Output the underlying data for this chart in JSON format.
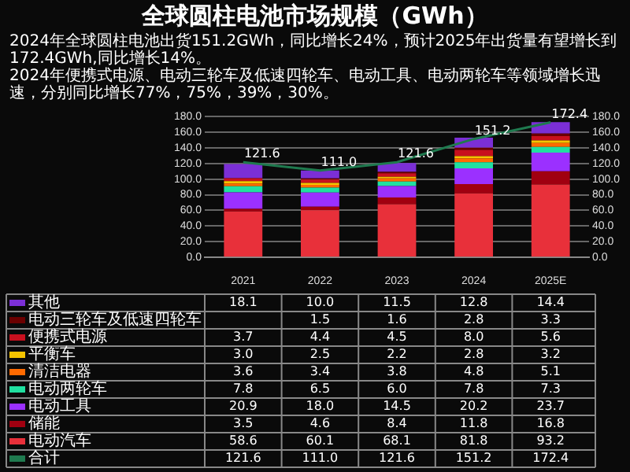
{
  "chart_data": {
    "type": "bar",
    "title": "全球圆柱电池市场规模（GWh）",
    "subtitle": "2024年全球圆柱电池出货151.2GWh，同比增长24%，预计2025年出货量有望增长到172.4GWh,同比增长14%。\n2024年便携式电源、电动三轮车及低速四轮车、电动工具、电动两轮车等领域增长迅速，分别同比增长77%，75%，39%，30%。",
    "categories": [
      "2021",
      "2022",
      "2023",
      "2024",
      "2025E"
    ],
    "stacked": true,
    "series": [
      {
        "name": "电动汽车",
        "color": "#e8303a",
        "values": [
          58.6,
          60.1,
          68.1,
          81.8,
          93.2
        ],
        "value_labels": [
          "58.6",
          "60.1",
          "68.1",
          "81.8",
          "93.2"
        ]
      },
      {
        "name": "储能",
        "color": "#a00010",
        "values": [
          3.5,
          4.6,
          8.4,
          11.8,
          16.8
        ],
        "value_labels": [
          "3.5",
          "4.6",
          "8.4",
          "11.8",
          "16.8"
        ]
      },
      {
        "name": "电动工具",
        "color": "#9b30ff",
        "values": [
          20.9,
          18.0,
          14.5,
          20.2,
          23.7
        ],
        "value_labels": [
          "20.9",
          "18.0",
          "14.5",
          "20.2",
          "23.7"
        ]
      },
      {
        "name": "电动两轮车",
        "color": "#20e0a0",
        "values": [
          7.8,
          6.5,
          6.0,
          7.8,
          7.3
        ],
        "value_labels": [
          "7.8",
          "6.5",
          "6.0",
          "7.8",
          "7.3"
        ]
      },
      {
        "name": "清洁电器",
        "color": "#ff6a00",
        "values": [
          3.6,
          3.4,
          3.8,
          4.8,
          5.1
        ],
        "value_labels": [
          "3.6",
          "3.4",
          "3.8",
          "4.8",
          "5.1"
        ]
      },
      {
        "name": "平衡车",
        "color": "#f5c400",
        "values": [
          3.0,
          2.5,
          2.2,
          2.8,
          3.2
        ],
        "value_labels": [
          "3.0",
          "2.5",
          "2.2",
          "2.8",
          "3.2"
        ]
      },
      {
        "name": "便携式电源",
        "color": "#c8101e",
        "values": [
          3.7,
          4.4,
          4.5,
          8.0,
          5.6
        ],
        "value_labels": [
          "3.7",
          "4.4",
          "4.5",
          "8.0",
          "5.6"
        ]
      },
      {
        "name": "电动三轮车及低速四轮车",
        "color": "#6b0000",
        "values": [
          null,
          1.5,
          1.6,
          2.8,
          3.3
        ],
        "value_labels": [
          null,
          "1.5",
          "1.6",
          "2.8",
          "3.3"
        ]
      },
      {
        "name": "其他",
        "color": "#7b2fd6",
        "values": [
          18.1,
          10.0,
          11.5,
          12.8,
          14.4
        ],
        "value_labels": [
          "18.1",
          "10.0",
          "11.5",
          "12.8",
          "14.4"
        ]
      },
      {
        "name": "合计",
        "type": "line",
        "color": "#1f7a4f",
        "values": [
          121.6,
          111.0,
          121.6,
          151.2,
          172.4
        ],
        "value_labels": [
          "121.6",
          "111.0",
          "121.6",
          "151.2",
          "172.4"
        ]
      }
    ],
    "ylim": [
      0,
      180
    ],
    "yticks": [
      {
        "value": 0,
        "label": "0.0"
      },
      {
        "value": 20,
        "label": "20.0"
      },
      {
        "value": 40,
        "label": "40.0"
      },
      {
        "value": 60,
        "label": "60.0"
      },
      {
        "value": 80,
        "label": "80.0"
      },
      {
        "value": 100,
        "label": "100.0"
      },
      {
        "value": 120,
        "label": "120.0"
      },
      {
        "value": 140,
        "label": "140.0"
      },
      {
        "value": 160,
        "label": "160.0"
      },
      {
        "value": 180,
        "label": "180.0"
      }
    ],
    "y2lim": [
      0,
      180
    ],
    "y2ticks": [
      {
        "value": 0,
        "label": "0.0"
      },
      {
        "value": 20,
        "label": "20.0"
      },
      {
        "value": 40,
        "label": "40.0"
      },
      {
        "value": 60,
        "label": "60.0"
      },
      {
        "value": 80,
        "label": "80.0"
      },
      {
        "value": 100,
        "label": "100.0"
      },
      {
        "value": 120,
        "label": "120.0"
      },
      {
        "value": 140,
        "label": "140.0"
      },
      {
        "value": 160,
        "label": "160.0"
      },
      {
        "value": 180,
        "label": "180.0"
      }
    ],
    "grid": "y",
    "legend": "bottom",
    "marker": "none"
  }
}
